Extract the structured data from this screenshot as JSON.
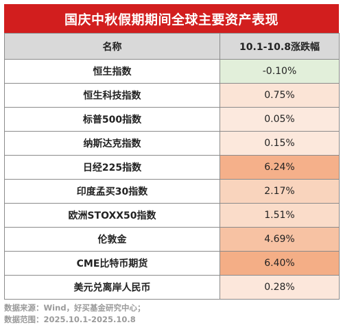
{
  "title": "国庆中秋假期期间全球主要资产表现",
  "table": {
    "headers": [
      "名称",
      "10.1-10.8涨跌幅"
    ],
    "rows": [
      {
        "name": "恒生指数",
        "change": "-0.10%",
        "color": "#e2efda"
      },
      {
        "name": "恒生科技指数",
        "change": "0.75%",
        "color": "#fbe4d6"
      },
      {
        "name": "标普500指数",
        "change": "0.05%",
        "color": "#fce9de"
      },
      {
        "name": "纳斯达克指数",
        "change": "0.15%",
        "color": "#fce8dc"
      },
      {
        "name": "日经225指数",
        "change": "6.24%",
        "color": "#f5b08a"
      },
      {
        "name": "印度孟买30指数",
        "change": "2.17%",
        "color": "#f9d4bd"
      },
      {
        "name": "欧洲STOXX50指数",
        "change": "1.51%",
        "color": "#fadcc9"
      },
      {
        "name": "伦敦金",
        "change": "4.69%",
        "color": "#f7c2a3"
      },
      {
        "name": "CME比特币期货",
        "change": "6.40%",
        "color": "#f4ae86"
      },
      {
        "name": "美元兑离岸人民币",
        "change": "0.28%",
        "color": "#fce7db"
      }
    ]
  },
  "footer": {
    "source": "数据来源：Wind，好买基金研究中心；",
    "range": "数据范围：2025.10.1-2025.10.8"
  }
}
